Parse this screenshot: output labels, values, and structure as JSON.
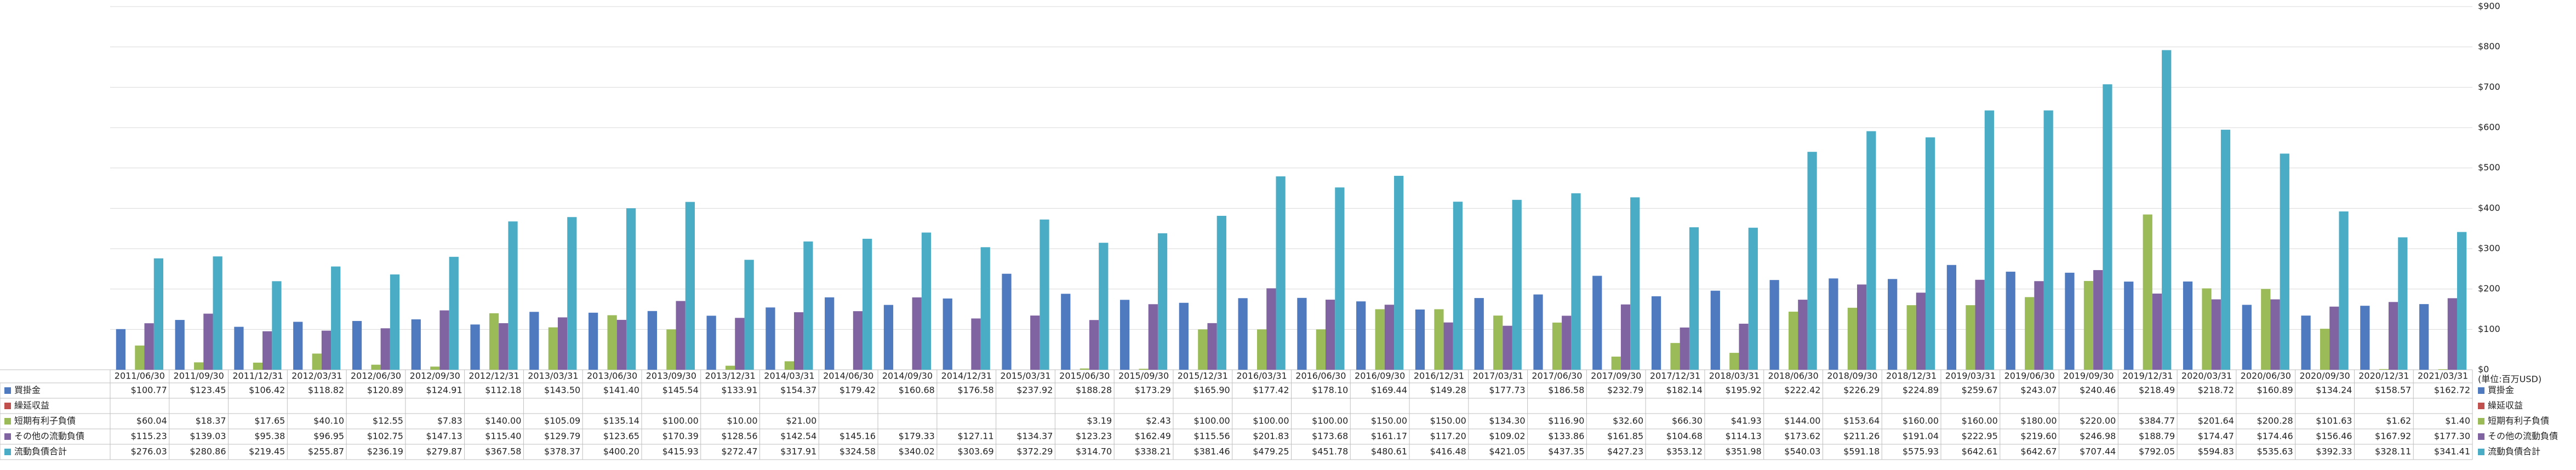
{
  "chart_data": {
    "type": "bar",
    "unit_note": "(単位:百万USD)",
    "categories": [
      "2011/06/30",
      "2011/09/30",
      "2011/12/31",
      "2012/03/31",
      "2012/06/30",
      "2012/09/30",
      "2012/12/31",
      "2013/03/31",
      "2013/06/30",
      "2013/09/30",
      "2013/12/31",
      "2014/03/31",
      "2014/06/30",
      "2014/09/30",
      "2014/12/31",
      "2015/03/31",
      "2015/06/30",
      "2015/09/30",
      "2015/12/31",
      "2016/03/31",
      "2016/06/30",
      "2016/09/30",
      "2016/12/31",
      "2017/03/31",
      "2017/06/30",
      "2017/09/30",
      "2017/12/31",
      "2018/03/31",
      "2018/06/30",
      "2018/09/30",
      "2018/12/31",
      "2019/03/31",
      "2019/06/30",
      "2019/09/30",
      "2019/12/31",
      "2020/03/31",
      "2020/06/30",
      "2020/09/30",
      "2020/12/31",
      "2021/03/31"
    ],
    "ylim": [
      0,
      900
    ],
    "yticks": [
      {
        "value": 0,
        "label": "$0"
      },
      {
        "value": 100,
        "label": "$100"
      },
      {
        "value": 200,
        "label": "$200"
      },
      {
        "value": 300,
        "label": "$300"
      },
      {
        "value": 400,
        "label": "$400"
      },
      {
        "value": 500,
        "label": "$500"
      },
      {
        "value": 600,
        "label": "$600"
      },
      {
        "value": 700,
        "label": "$700"
      },
      {
        "value": 800,
        "label": "$800"
      },
      {
        "value": 900,
        "label": "$900"
      }
    ],
    "grid": true,
    "series": [
      {
        "name": "買掛金",
        "color": "#4f7ac0",
        "values": [
          100.77,
          123.45,
          106.42,
          118.82,
          120.89,
          124.91,
          112.18,
          143.5,
          141.4,
          145.54,
          133.91,
          154.37,
          179.42,
          160.68,
          176.58,
          237.92,
          188.28,
          173.29,
          165.9,
          177.42,
          178.1,
          169.44,
          149.28,
          177.73,
          186.58,
          232.79,
          182.14,
          195.92,
          222.42,
          226.29,
          224.89,
          259.67,
          243.07,
          240.46,
          218.49,
          218.72,
          160.89,
          134.24,
          158.57,
          162.72
        ],
        "value_labels": [
          "$100.77",
          "$123.45",
          "$106.42",
          "$118.82",
          "$120.89",
          "$124.91",
          "$112.18",
          "$143.50",
          "$141.40",
          "$145.54",
          "$133.91",
          "$154.37",
          "$179.42",
          "$160.68",
          "$176.58",
          "$237.92",
          "$188.28",
          "$173.29",
          "$165.90",
          "$177.42",
          "$178.10",
          "$169.44",
          "$149.28",
          "$177.73",
          "$186.58",
          "$232.79",
          "$182.14",
          "$195.92",
          "$222.42",
          "$226.29",
          "$224.89",
          "$259.67",
          "$243.07",
          "$240.46",
          "$218.49",
          "$218.72",
          "$160.89",
          "$134.24",
          "$158.57",
          "$162.72"
        ]
      },
      {
        "name": "繰延収益",
        "color": "#c0504d",
        "values": [
          null,
          null,
          null,
          null,
          null,
          null,
          null,
          null,
          null,
          null,
          null,
          null,
          null,
          null,
          null,
          null,
          null,
          null,
          null,
          null,
          null,
          null,
          null,
          null,
          null,
          null,
          null,
          null,
          null,
          null,
          null,
          null,
          null,
          null,
          null,
          null,
          null,
          null,
          null,
          null
        ],
        "value_labels": [
          null,
          null,
          null,
          null,
          null,
          null,
          null,
          null,
          null,
          null,
          null,
          null,
          null,
          null,
          null,
          null,
          null,
          null,
          null,
          null,
          null,
          null,
          null,
          null,
          null,
          null,
          null,
          null,
          null,
          null,
          null,
          null,
          null,
          null,
          null,
          null,
          null,
          null,
          null,
          null
        ]
      },
      {
        "name": "短期有利子負債",
        "color": "#9bbb59",
        "values": [
          60.04,
          18.37,
          17.65,
          40.1,
          12.55,
          7.83,
          140.0,
          105.09,
          135.14,
          100.0,
          10.0,
          21.0,
          null,
          null,
          null,
          null,
          3.19,
          2.43,
          100.0,
          100.0,
          100.0,
          150.0,
          150.0,
          134.3,
          116.9,
          32.6,
          66.3,
          41.93,
          144.0,
          153.64,
          160.0,
          160.0,
          180.0,
          220.0,
          384.77,
          201.64,
          200.28,
          101.63,
          1.62,
          1.4
        ],
        "value_labels": [
          "$60.04",
          "$18.37",
          "$17.65",
          "$40.10",
          "$12.55",
          "$7.83",
          "$140.00",
          "$105.09",
          "$135.14",
          "$100.00",
          "$10.00",
          "$21.00",
          null,
          null,
          null,
          null,
          "$3.19",
          "$2.43",
          "$100.00",
          "$100.00",
          "$100.00",
          "$150.00",
          "$150.00",
          "$134.30",
          "$116.90",
          "$32.60",
          "$66.30",
          "$41.93",
          "$144.00",
          "$153.64",
          "$160.00",
          "$160.00",
          "$180.00",
          "$220.00",
          "$384.77",
          "$201.64",
          "$200.28",
          "$101.63",
          "$1.62",
          "$1.40"
        ]
      },
      {
        "name": "その他の流動負債",
        "color": "#8064a2",
        "values": [
          115.23,
          139.03,
          95.38,
          96.95,
          102.75,
          147.13,
          115.4,
          129.79,
          123.65,
          170.39,
          128.56,
          142.54,
          145.16,
          179.33,
          127.11,
          134.37,
          123.23,
          162.49,
          115.56,
          201.83,
          173.68,
          161.17,
          117.2,
          109.02,
          133.86,
          161.85,
          104.68,
          114.13,
          173.62,
          211.26,
          191.04,
          222.95,
          219.6,
          246.98,
          188.79,
          174.47,
          174.46,
          156.46,
          167.92,
          177.3
        ],
        "value_labels": [
          "$115.23",
          "$139.03",
          "$95.38",
          "$96.95",
          "$102.75",
          "$147.13",
          "$115.40",
          "$129.79",
          "$123.65",
          "$170.39",
          "$128.56",
          "$142.54",
          "$145.16",
          "$179.33",
          "$127.11",
          "$134.37",
          "$123.23",
          "$162.49",
          "$115.56",
          "$201.83",
          "$173.68",
          "$161.17",
          "$117.20",
          "$109.02",
          "$133.86",
          "$161.85",
          "$104.68",
          "$114.13",
          "$173.62",
          "$211.26",
          "$191.04",
          "$222.95",
          "$219.60",
          "$246.98",
          "$188.79",
          "$174.47",
          "$174.46",
          "$156.46",
          "$167.92",
          "$177.30"
        ]
      },
      {
        "name": "流動負債合計",
        "color": "#4bacc6",
        "values": [
          276.03,
          280.86,
          219.45,
          255.87,
          236.19,
          279.87,
          367.58,
          378.37,
          400.2,
          415.93,
          272.47,
          317.91,
          324.58,
          340.02,
          303.69,
          372.29,
          314.7,
          338.21,
          381.46,
          479.25,
          451.78,
          480.61,
          416.48,
          421.05,
          437.35,
          427.23,
          353.12,
          351.98,
          540.03,
          591.18,
          575.93,
          642.61,
          642.67,
          707.44,
          792.05,
          594.83,
          535.63,
          392.33,
          328.11,
          341.41
        ],
        "value_labels": [
          "$276.03",
          "$280.86",
          "$219.45",
          "$255.87",
          "$236.19",
          "$279.87",
          "$367.58",
          "$378.37",
          "$400.20",
          "$415.93",
          "$272.47",
          "$317.91",
          "$324.58",
          "$340.02",
          "$303.69",
          "$372.29",
          "$314.70",
          "$338.21",
          "$381.46",
          "$479.25",
          "$451.78",
          "$480.61",
          "$416.48",
          "$421.05",
          "$437.35",
          "$427.23",
          "$353.12",
          "$351.98",
          "$540.03",
          "$591.18",
          "$575.93",
          "$642.61",
          "$642.67",
          "$707.44",
          "$792.05",
          "$594.83",
          "$535.63",
          "$392.33",
          "$328.11",
          "$341.41"
        ]
      }
    ]
  }
}
